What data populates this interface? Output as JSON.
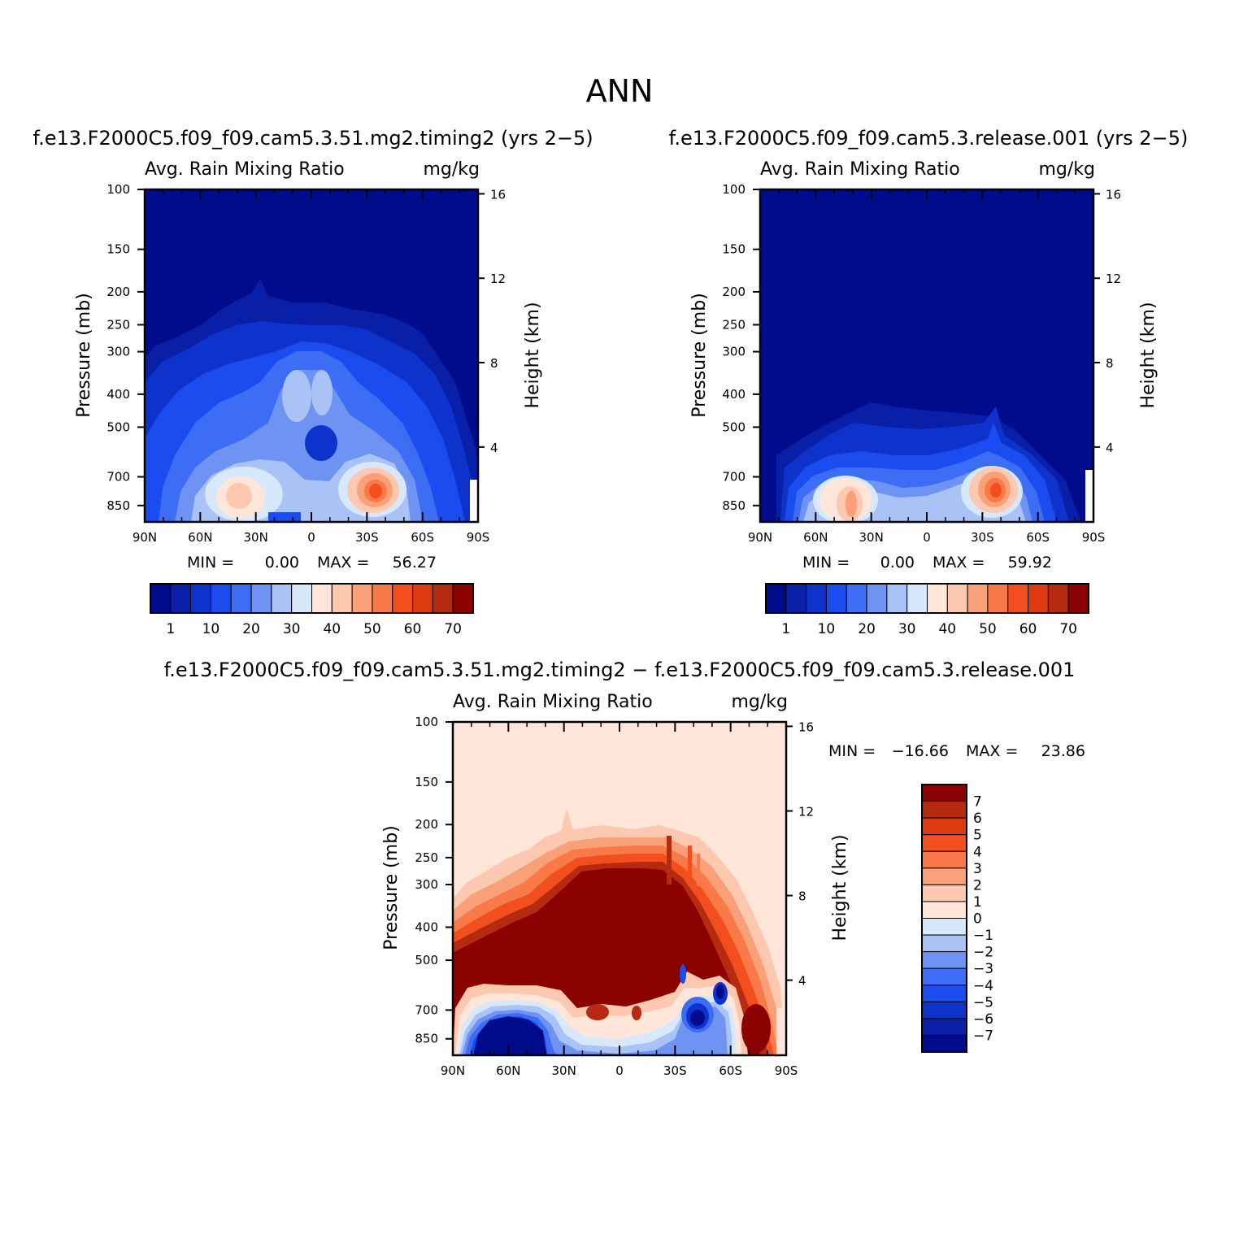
{
  "figure_title": "ANN",
  "chart_data": [
    {
      "type": "heatmap",
      "panel": "top-left",
      "title": "f.e13.F2000C5.f09_f09.cam5.3.51.mg2.timing2 (yrs 2−5)",
      "subtitle_left": "Avg. Rain Mixing Ratio",
      "subtitle_right": "mg/kg",
      "x_ticks": [
        "90N",
        "60N",
        "30N",
        "0",
        "30S",
        "60S",
        "90S"
      ],
      "x_range": [
        90,
        -90
      ],
      "y_label": "Pressure (mb)",
      "y_ticks": [
        100,
        150,
        200,
        250,
        300,
        400,
        500,
        700,
        850
      ],
      "y_range": [
        100,
        950
      ],
      "y2_label": "Height (km)",
      "y2_ticks": [
        16,
        12,
        8,
        4
      ],
      "stats": {
        "min_label": "MIN =",
        "min": "0.00",
        "max_label": "MAX =",
        "max": "56.27"
      },
      "colorbar": {
        "orientation": "horizontal",
        "labels": [
          "1",
          "10",
          "20",
          "30",
          "40",
          "50",
          "60",
          "70"
        ],
        "colors": [
          "#000c8c",
          "#0a1fa8",
          "#0d33cc",
          "#1b4cef",
          "#3d6cf5",
          "#6e93f3",
          "#a9c3f7",
          "#d6e8fa",
          "#ffe6d8",
          "#fcc8b0",
          "#f9a078",
          "#f97a48",
          "#f24e1e",
          "#dd3a10",
          "#b62a10",
          "#8b0000"
        ]
      },
      "features": [
        {
          "lat": 35,
          "p": 760,
          "value": 35
        },
        {
          "lat": -30,
          "p": 740,
          "value": 56.27
        },
        {
          "lat": 0,
          "p": 420,
          "value": 25
        }
      ]
    },
    {
      "type": "heatmap",
      "panel": "top-right",
      "title": "f.e13.F2000C5.f09_f09.cam5.3.release.001 (yrs 2−5)",
      "subtitle_left": "Avg. Rain Mixing Ratio",
      "subtitle_right": "mg/kg",
      "x_ticks": [
        "90N",
        "60N",
        "30N",
        "0",
        "30S",
        "60S",
        "90S"
      ],
      "x_range": [
        90,
        -90
      ],
      "y_label": "Pressure (mb)",
      "y_ticks": [
        100,
        150,
        200,
        250,
        300,
        400,
        500,
        700,
        850
      ],
      "y_range": [
        100,
        950
      ],
      "y2_label": "Height (km)",
      "y2_ticks": [
        16,
        12,
        8,
        4
      ],
      "stats": {
        "min_label": "MIN =",
        "min": "0.00",
        "max_label": "MAX =",
        "max": "59.92"
      },
      "colorbar": {
        "orientation": "horizontal",
        "labels": [
          "1",
          "10",
          "20",
          "30",
          "40",
          "50",
          "60",
          "70"
        ],
        "colors": [
          "#000c8c",
          "#0a1fa8",
          "#0d33cc",
          "#1b4cef",
          "#3d6cf5",
          "#6e93f3",
          "#a9c3f7",
          "#d6e8fa",
          "#ffe6d8",
          "#fcc8b0",
          "#f9a078",
          "#f97a48",
          "#f24e1e",
          "#dd3a10",
          "#b62a10",
          "#8b0000"
        ]
      },
      "features": [
        {
          "lat": 40,
          "p": 780,
          "value": 45
        },
        {
          "lat": -37,
          "p": 710,
          "value": 59.92
        }
      ]
    },
    {
      "type": "heatmap",
      "panel": "bottom",
      "title": "f.e13.F2000C5.f09_f09.cam5.3.51.mg2.timing2 − f.e13.F2000C5.f09_f09.cam5.3.release.001",
      "subtitle_left": "Avg. Rain Mixing Ratio",
      "subtitle_right": "mg/kg",
      "x_ticks": [
        "90N",
        "60N",
        "30N",
        "0",
        "30S",
        "60S",
        "90S"
      ],
      "x_range": [
        90,
        -90
      ],
      "y_label": "Pressure (mb)",
      "y_ticks": [
        100,
        150,
        200,
        250,
        300,
        400,
        500,
        700,
        850
      ],
      "y_range": [
        100,
        950
      ],
      "y2_label": "Height (km)",
      "y2_ticks": [
        16,
        12,
        8,
        4
      ],
      "stats": {
        "min_label": "MIN =",
        "min": "−16.66",
        "max_label": "MAX =",
        "max": "23.86"
      },
      "colorbar": {
        "orientation": "vertical",
        "labels": [
          "7",
          "6",
          "5",
          "4",
          "3",
          "2",
          "1",
          "0",
          "−1",
          "−2",
          "−3",
          "−4",
          "−5",
          "−6",
          "−7"
        ],
        "colors": [
          "#8b0000",
          "#b62a10",
          "#dd3a10",
          "#f24e1e",
          "#f97a48",
          "#f9a078",
          "#fcc8b0",
          "#ffe6d8",
          "#d6e8fa",
          "#a9c3f7",
          "#6e93f3",
          "#3d6cf5",
          "#1b4cef",
          "#0d33cc",
          "#0a1fa8",
          "#000c8c"
        ]
      },
      "features": [
        {
          "lat": 45,
          "p": 800,
          "value": -16.66
        },
        {
          "lat": 10,
          "p": 400,
          "value": 23.86
        }
      ]
    }
  ]
}
